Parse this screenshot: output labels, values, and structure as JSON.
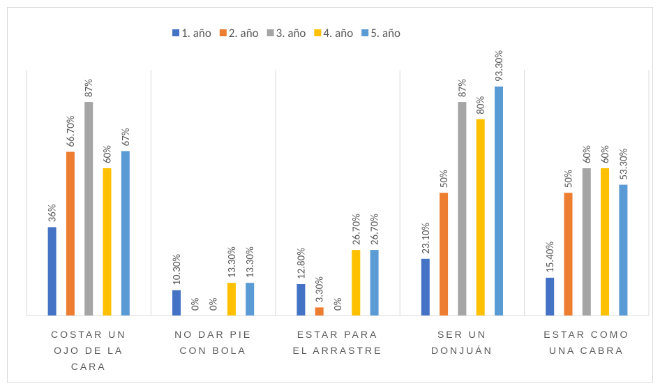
{
  "chart_data": {
    "type": "bar",
    "categories": [
      "COSTAR UN OJO DE LA CARA",
      "NO DAR PIE CON BOLA",
      "ESTAR PARA EL ARRASTRE",
      "SER UN DONJUÁN",
      "ESTAR COMO UNA CABRA"
    ],
    "series": [
      {
        "name": "1. año",
        "color": "#4472c4",
        "values": [
          36,
          10.3,
          12.8,
          23.1,
          15.4
        ],
        "value_labels": [
          "36%",
          "10.30%",
          "12.80%",
          "23.10%",
          "15.40%"
        ]
      },
      {
        "name": "2. año",
        "color": "#ed7d31",
        "values": [
          66.7,
          0,
          3.3,
          50,
          50
        ],
        "value_labels": [
          "66.70%",
          "0%",
          "3.30%",
          "50%",
          "50%"
        ]
      },
      {
        "name": "3. año",
        "color": "#a5a5a5",
        "values": [
          87,
          0,
          0,
          87,
          60
        ],
        "value_labels": [
          "87%",
          "0%",
          "0%",
          "87%",
          "60%"
        ]
      },
      {
        "name": "4. año",
        "color": "#ffc000",
        "values": [
          60,
          13.3,
          26.7,
          80,
          60
        ],
        "value_labels": [
          "60%",
          "13.30%",
          "26.70%",
          "80%",
          "60%"
        ]
      },
      {
        "name": "5. año",
        "color": "#5b9bd5",
        "values": [
          67,
          13.3,
          26.7,
          93.3,
          53.3
        ],
        "value_labels": [
          "67%",
          "13.30%",
          "26.70%",
          "93.30%",
          "53.30%"
        ]
      }
    ],
    "ylim": [
      0,
      100
    ],
    "legend": "top"
  }
}
